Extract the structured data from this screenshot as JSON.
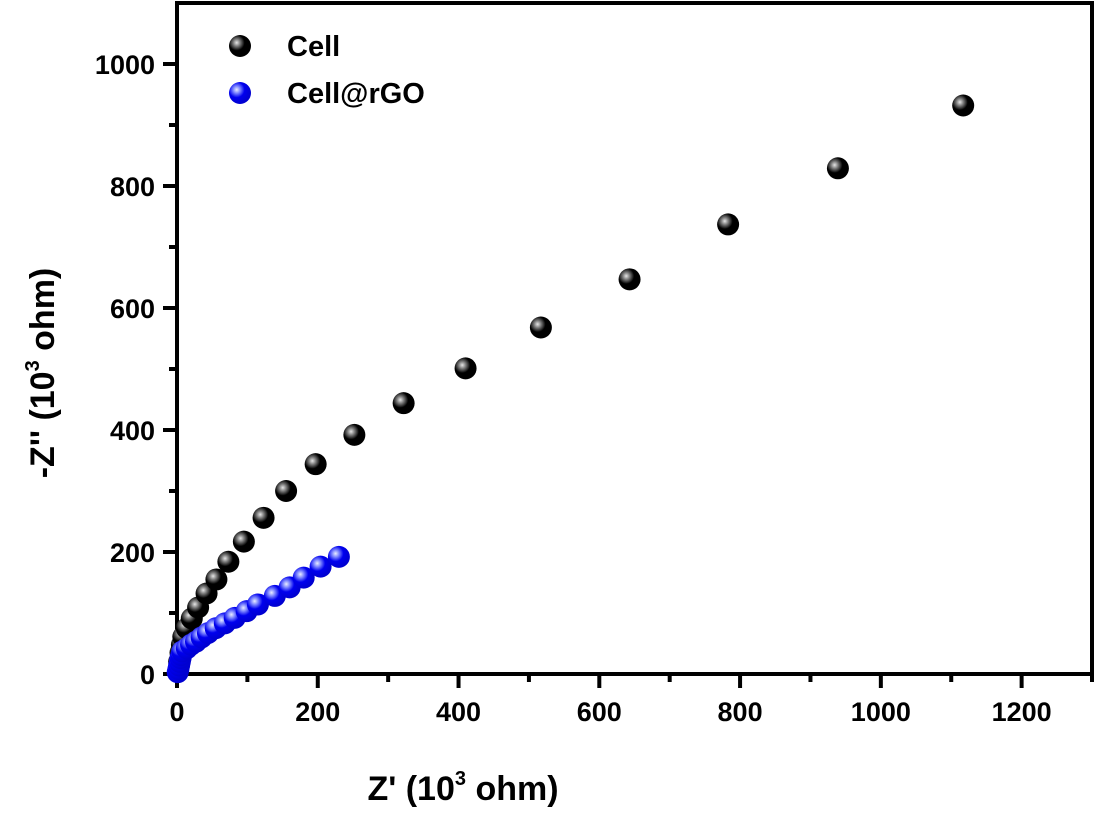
{
  "chart_data": {
    "type": "scatter",
    "title": "",
    "xlabel": "Z' (10",
    "xlabel_sup": "3",
    "xlabel_tail": " ohm)",
    "ylabel": "-Z'' (10",
    "ylabel_sup": "3",
    "ylabel_tail": " ohm)",
    "xlim": [
      0,
      1300
    ],
    "ylim": [
      0,
      1100
    ],
    "xticks": [
      0,
      200,
      400,
      600,
      800,
      1000,
      1200
    ],
    "xtick_labels": [
      "0",
      "200",
      "400",
      "600",
      "800",
      "1000",
      "1200"
    ],
    "xminor": [
      100,
      300,
      500,
      700,
      900,
      1100,
      1300
    ],
    "yticks": [
      0,
      200,
      400,
      600,
      800,
      1000
    ],
    "ytick_labels": [
      "0",
      "200",
      "400",
      "600",
      "800",
      "1000"
    ],
    "yminor": [
      100,
      300,
      500,
      700,
      900
    ],
    "grid": false,
    "legend_position": "top-left",
    "series": [
      {
        "name": "Cell",
        "color": "#000000",
        "highlight": "#d8d8d8",
        "x": [
          3,
          5,
          7,
          9,
          14,
          21,
          30,
          42,
          56,
          73,
          95,
          123,
          155,
          197,
          252,
          322,
          410,
          517,
          643,
          783,
          939,
          1117
        ],
        "y": [
          20,
          35,
          48,
          61,
          75,
          91,
          109,
          132,
          155,
          184,
          217,
          256,
          300,
          344,
          392,
          444,
          501,
          568,
          647,
          737,
          829,
          932
        ]
      },
      {
        "name": "Cell@rGO",
        "color": "#0000ee",
        "highlight": "#d8e0ff",
        "x": [
          1,
          2,
          3,
          4,
          5,
          6,
          7.5,
          14,
          20,
          27,
          35,
          44,
          55,
          68,
          82,
          99,
          115,
          139,
          160,
          180,
          204,
          230
        ],
        "y": [
          3,
          8,
          14,
          20,
          26,
          31,
          37,
          42,
          48,
          53,
          60,
          67,
          75,
          83,
          92,
          103,
          114,
          128,
          142,
          158,
          176,
          192
        ]
      }
    ]
  }
}
